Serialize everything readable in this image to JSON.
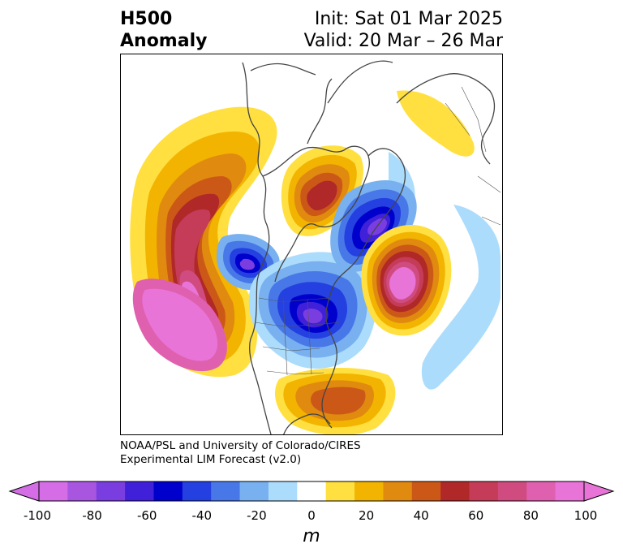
{
  "title": {
    "line1_left": "H500",
    "line2_left": "Anomaly",
    "init": "Init: Sat 01 Mar 2025",
    "valid": "Valid: 20 Mar – 26 Mar"
  },
  "credit": {
    "line1": "NOAA/PSL and University of Colorado/CIRES",
    "line2": "Experimental LIM Forecast (v2.0)"
  },
  "colorbar": {
    "unit": "m",
    "tick_labels": [
      "-100",
      "-80",
      "-60",
      "-40",
      "-20",
      "0",
      "20",
      "40",
      "60",
      "80",
      "100"
    ],
    "levels": [
      -100,
      -90,
      -80,
      -70,
      -60,
      -50,
      -40,
      -30,
      -20,
      -10,
      10,
      20,
      30,
      40,
      50,
      60,
      70,
      80,
      90,
      100
    ],
    "colors": [
      "#d56ee6",
      "#a855e0",
      "#7a3ee0",
      "#4020d8",
      "#0000cc",
      "#2440e0",
      "#4878e8",
      "#78b0f0",
      "#acdcfc",
      "#ffffff",
      "#ffe040",
      "#f2b400",
      "#e08a10",
      "#cc5818",
      "#b02828",
      "#c43c58",
      "#d04c80",
      "#e060b0",
      "#e874d8"
    ],
    "extend_low_color": "#d56ee6",
    "extend_high_color": "#e874d8"
  },
  "anomalies": [
    {
      "name": "Northeast Pacific ridge",
      "sign": "positive",
      "peak_m": 100
    },
    {
      "name": "Gulf of Alaska trough",
      "sign": "negative",
      "peak_m": -60
    },
    {
      "name": "Central North America trough",
      "sign": "negative",
      "peak_m": -70
    },
    {
      "name": "Hudson Bay ridge",
      "sign": "positive",
      "peak_m": 60
    },
    {
      "name": "Baffin Bay trough",
      "sign": "negative",
      "peak_m": -80
    },
    {
      "name": "North Atlantic ridge",
      "sign": "positive",
      "peak_m": 100
    },
    {
      "name": "Southeast US ridge",
      "sign": "positive",
      "peak_m": 50
    },
    {
      "name": "Eastern Atlantic trough",
      "sign": "negative",
      "peak_m": -20
    },
    {
      "name": "Western Europe ridge",
      "sign": "positive",
      "peak_m": 20
    }
  ]
}
